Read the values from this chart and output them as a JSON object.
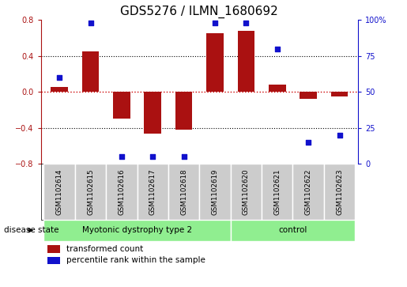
{
  "title": "GDS5276 / ILMN_1680692",
  "samples": [
    "GSM1102614",
    "GSM1102615",
    "GSM1102616",
    "GSM1102617",
    "GSM1102618",
    "GSM1102619",
    "GSM1102620",
    "GSM1102621",
    "GSM1102622",
    "GSM1102623"
  ],
  "transformed_count": [
    0.05,
    0.45,
    -0.3,
    -0.47,
    -0.42,
    0.65,
    0.68,
    0.08,
    -0.08,
    -0.05
  ],
  "percentile_rank": [
    60,
    98,
    5,
    5,
    5,
    98,
    98,
    80,
    15,
    20
  ],
  "bar_color": "#aa1111",
  "dot_color": "#1111cc",
  "ylim_left": [
    -0.8,
    0.8
  ],
  "ylim_right": [
    0,
    100
  ],
  "yticks_left": [
    -0.8,
    -0.4,
    0.0,
    0.4,
    0.8
  ],
  "yticks_right": [
    0,
    25,
    50,
    75,
    100
  ],
  "ytick_labels_right": [
    "0",
    "25",
    "50",
    "75",
    "100%"
  ],
  "group1_indices": [
    0,
    1,
    2,
    3,
    4,
    5
  ],
  "group2_indices": [
    6,
    7,
    8,
    9
  ],
  "group1_label": "Myotonic dystrophy type 2",
  "group2_label": "control",
  "disease_state_label": "disease state",
  "legend_bar_label": "transformed count",
  "legend_dot_label": "percentile rank within the sample",
  "group_color": "#90ee90",
  "tick_box_color": "#cccccc",
  "bar_width": 0.55,
  "zero_line_color": "#cc0000",
  "title_fontsize": 11,
  "tick_fontsize": 7,
  "label_fontsize": 8
}
